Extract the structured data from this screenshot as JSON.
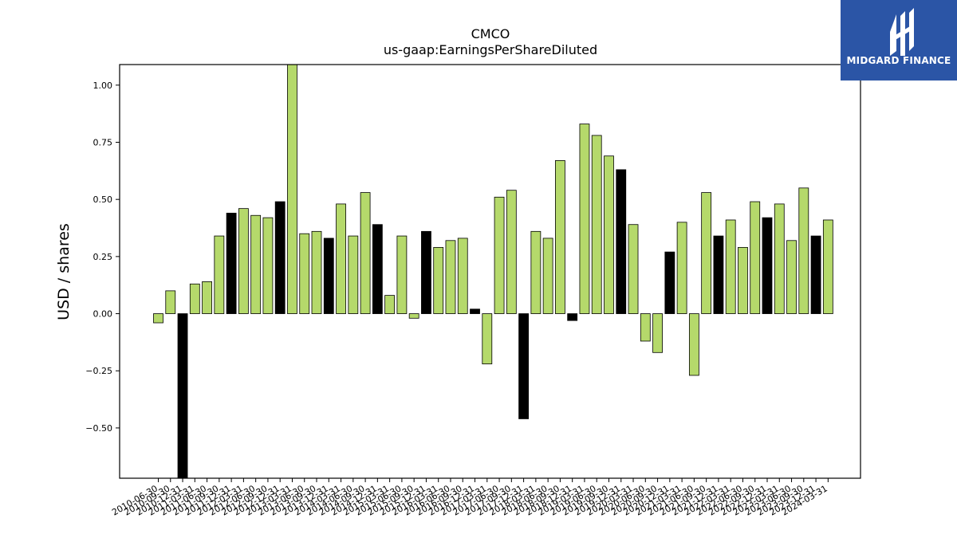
{
  "brand": {
    "name": "MIDGARD FINANCE",
    "logo_icon": "midgard-m-icon",
    "color": "#2b55a6"
  },
  "chart_data": {
    "type": "bar",
    "title": "CMCO",
    "subtitle": "us-gaap:EarningsPerShareDiluted",
    "ylabel": "USD / shares",
    "xlabel": "",
    "ylim": [
      -0.72,
      1.09
    ],
    "yticks": [
      -0.5,
      -0.25,
      0.0,
      0.25,
      0.5,
      0.75,
      1.0
    ],
    "ytick_labels": [
      "−0.50",
      "−0.25",
      "0.00",
      "0.25",
      "0.50",
      "0.75",
      "1.00"
    ],
    "colors": {
      "quarter": "#b5d96b",
      "annual": "#000000"
    },
    "bars": [
      {
        "x": "2010-06-30",
        "value": -0.04,
        "annual": false
      },
      {
        "x": "2010-09-30",
        "value": 0.1,
        "annual": false
      },
      {
        "x": "2010-12-31",
        "value": -0.72,
        "annual": true
      },
      {
        "x": "2011-03-31",
        "value": 0.13,
        "annual": false
      },
      {
        "x": "2011-06-30",
        "value": 0.14,
        "annual": false
      },
      {
        "x": "2011-09-30",
        "value": 0.34,
        "annual": false
      },
      {
        "x": "2011-12-31",
        "value": 0.44,
        "annual": true
      },
      {
        "x": "2012-03-31",
        "value": 0.46,
        "annual": false
      },
      {
        "x": "2012-06-30",
        "value": 0.43,
        "annual": false
      },
      {
        "x": "2012-09-30",
        "value": 0.42,
        "annual": false
      },
      {
        "x": "2012-12-31",
        "value": 0.49,
        "annual": true
      },
      {
        "x": "2013-03-31",
        "value": 1.09,
        "annual": false
      },
      {
        "x": "2013-06-30",
        "value": 0.35,
        "annual": false
      },
      {
        "x": "2013-09-30",
        "value": 0.36,
        "annual": false
      },
      {
        "x": "2013-12-31",
        "value": 0.33,
        "annual": true
      },
      {
        "x": "2014-03-31",
        "value": 0.48,
        "annual": false
      },
      {
        "x": "2014-06-30",
        "value": 0.34,
        "annual": false
      },
      {
        "x": "2014-09-30",
        "value": 0.53,
        "annual": false
      },
      {
        "x": "2014-12-31",
        "value": 0.39,
        "annual": true
      },
      {
        "x": "2015-03-31",
        "value": 0.08,
        "annual": false
      },
      {
        "x": "2015-06-30",
        "value": 0.34,
        "annual": false
      },
      {
        "x": "2015-09-30",
        "value": -0.02,
        "annual": false
      },
      {
        "x": "2015-12-31",
        "value": 0.36,
        "annual": true
      },
      {
        "x": "2016-03-31",
        "value": 0.29,
        "annual": false
      },
      {
        "x": "2016-06-30",
        "value": 0.32,
        "annual": false
      },
      {
        "x": "2016-09-30",
        "value": 0.33,
        "annual": false
      },
      {
        "x": "2016-12-31",
        "value": 0.02,
        "annual": true
      },
      {
        "x": "2017-03-31",
        "value": -0.22,
        "annual": false
      },
      {
        "x": "2017-06-30",
        "value": 0.51,
        "annual": false
      },
      {
        "x": "2017-09-30",
        "value": 0.54,
        "annual": false
      },
      {
        "x": "2017-12-31",
        "value": -0.46,
        "annual": true
      },
      {
        "x": "2018-03-31",
        "value": 0.36,
        "annual": false
      },
      {
        "x": "2018-06-30",
        "value": 0.33,
        "annual": false
      },
      {
        "x": "2018-09-30",
        "value": 0.67,
        "annual": false
      },
      {
        "x": "2018-12-31",
        "value": -0.03,
        "annual": true
      },
      {
        "x": "2019-03-31",
        "value": 0.83,
        "annual": false
      },
      {
        "x": "2019-06-30",
        "value": 0.78,
        "annual": false
      },
      {
        "x": "2019-09-30",
        "value": 0.69,
        "annual": false
      },
      {
        "x": "2019-12-31",
        "value": 0.63,
        "annual": true
      },
      {
        "x": "2020-03-31",
        "value": 0.39,
        "annual": false
      },
      {
        "x": "2020-06-30",
        "value": -0.12,
        "annual": false
      },
      {
        "x": "2020-09-30",
        "value": -0.17,
        "annual": false
      },
      {
        "x": "2020-12-31",
        "value": 0.27,
        "annual": true
      },
      {
        "x": "2021-03-31",
        "value": 0.4,
        "annual": false
      },
      {
        "x": "2021-06-30",
        "value": -0.27,
        "annual": false
      },
      {
        "x": "2021-09-30",
        "value": 0.53,
        "annual": false
      },
      {
        "x": "2021-12-31",
        "value": 0.34,
        "annual": true
      },
      {
        "x": "2022-03-31",
        "value": 0.41,
        "annual": false
      },
      {
        "x": "2022-06-30",
        "value": 0.29,
        "annual": false
      },
      {
        "x": "2022-09-30",
        "value": 0.49,
        "annual": false
      },
      {
        "x": "2022-12-31",
        "value": 0.42,
        "annual": true
      },
      {
        "x": "2023-03-31",
        "value": 0.48,
        "annual": false
      },
      {
        "x": "2023-06-30",
        "value": 0.32,
        "annual": false
      },
      {
        "x": "2023-09-30",
        "value": 0.55,
        "annual": false
      },
      {
        "x": "2023-12-31",
        "value": 0.34,
        "annual": true
      },
      {
        "x": "2024-03-31",
        "value": 0.41,
        "annual": false
      }
    ],
    "grid": false,
    "legend": "none"
  }
}
